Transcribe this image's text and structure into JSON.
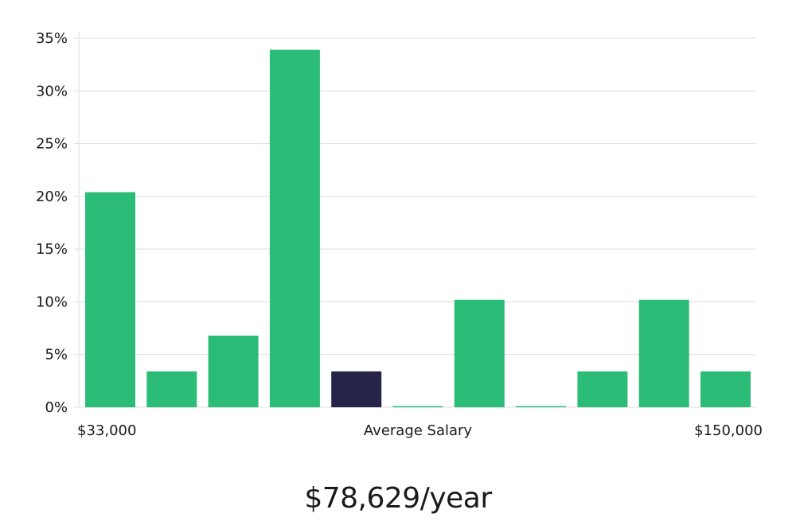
{
  "chart_data": {
    "type": "bar",
    "title": "",
    "ylabel": "",
    "xlabel": "Average Salary",
    "x_min_label": "$33,000",
    "x_max_label": "$150,000",
    "ylim": [
      0,
      35
    ],
    "yticks": [
      0,
      5,
      10,
      15,
      20,
      25,
      30,
      35
    ],
    "ytick_suffix": "%",
    "values": [
      20.4,
      3.4,
      6.8,
      33.9,
      3.4,
      0,
      10.2,
      0,
      3.4,
      10.2,
      3.4
    ],
    "highlight_index": 4,
    "colors": {
      "bar": "#2bbd77",
      "highlight": "#27244a",
      "grid": "#dddddd"
    }
  },
  "salary_summary": "$78,629/year"
}
